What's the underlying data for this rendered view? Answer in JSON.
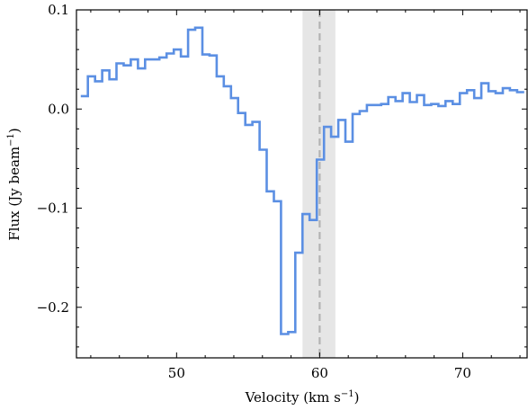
{
  "chart_data": {
    "type": "line",
    "style": "step",
    "xlabel_main": "Velocity (km s",
    "xlabel_sup": "−1",
    "xlabel_end": ")",
    "ylabel_main": "Flux (Jy beam",
    "ylabel_sup": "−1",
    "ylabel_end": ")",
    "xlim": [
      43.0,
      74.5
    ],
    "ylim": [
      -0.251,
      0.1
    ],
    "x_ticks": [
      50,
      60,
      70
    ],
    "x_tick_labels": [
      "50",
      "60",
      "70"
    ],
    "y_ticks": [
      0.1,
      0.0,
      -0.1,
      -0.2
    ],
    "y_tick_labels": [
      "0.1",
      "0.0",
      "−0.1",
      "−0.2"
    ],
    "grid": false,
    "series_color": "#5b8fe3",
    "shaded_band": {
      "x_start": 58.8,
      "x_end": 61.1,
      "color": "#e6e6e6"
    },
    "reference_line": {
      "x": 60.0,
      "style": "dashed",
      "color": "#b3b3b3"
    },
    "bin_width": 0.5,
    "bins_start": [
      43.3,
      43.8,
      44.3,
      44.8,
      45.3,
      45.8,
      46.3,
      46.8,
      47.3,
      47.8,
      48.3,
      48.8,
      49.3,
      49.8,
      50.3,
      50.8,
      51.3,
      51.8,
      52.3,
      52.8,
      53.3,
      53.8,
      54.3,
      54.8,
      55.3,
      55.8,
      56.3,
      56.8,
      57.3,
      57.8,
      58.3,
      58.8,
      59.3,
      59.8,
      60.3,
      60.8,
      61.3,
      61.8,
      62.3,
      62.8,
      63.3,
      63.8,
      64.3,
      64.8,
      65.3,
      65.8,
      66.3,
      66.8,
      67.3,
      67.8,
      68.3,
      68.8,
      69.3,
      69.8,
      70.3,
      70.8,
      71.3,
      71.8,
      72.3,
      72.8,
      73.3,
      73.8
    ],
    "values": [
      0.013,
      0.033,
      0.028,
      0.039,
      0.03,
      0.046,
      0.044,
      0.05,
      0.041,
      0.05,
      0.05,
      0.052,
      0.056,
      0.06,
      0.053,
      0.08,
      0.082,
      0.055,
      0.054,
      0.033,
      0.023,
      0.011,
      -0.004,
      -0.016,
      -0.013,
      -0.041,
      -0.083,
      -0.093,
      -0.227,
      -0.225,
      -0.145,
      -0.106,
      -0.112,
      -0.051,
      -0.018,
      -0.028,
      -0.011,
      -0.033,
      -0.005,
      -0.002,
      0.004,
      0.004,
      0.005,
      0.012,
      0.008,
      0.016,
      0.007,
      0.014,
      0.004,
      0.005,
      0.003,
      0.008,
      0.005,
      0.016,
      0.019,
      0.011,
      0.026,
      0.018,
      0.016,
      0.021,
      0.019,
      0.017
    ]
  }
}
